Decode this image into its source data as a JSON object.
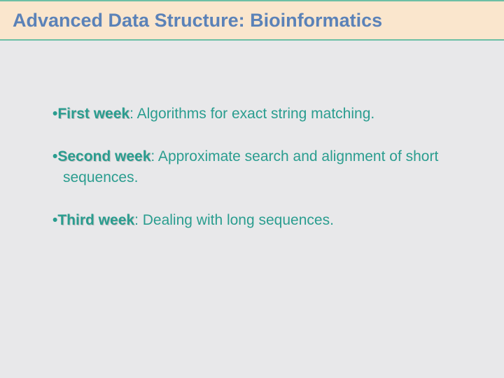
{
  "slide": {
    "title": "Advanced Data Structure: Bioinformatics",
    "background_color": "#e8e8ea",
    "header": {
      "background_color": "#fae6cd",
      "border_color": "#6cbfa5",
      "title_color": "#5b82b8",
      "title_fontsize": 27
    },
    "bullets": [
      {
        "label": "First week",
        "text": ": Algorithms for exact string matching."
      },
      {
        "label": "Second week",
        "text": ": Approximate search and alignment of short sequences."
      },
      {
        "label": "Third week",
        "text": ": Dealing with long sequences."
      }
    ],
    "bullet_style": {
      "text_color": "#2a9d8f",
      "fontsize": 21,
      "label_fontweight": "bold",
      "bullet_char": "•"
    }
  }
}
